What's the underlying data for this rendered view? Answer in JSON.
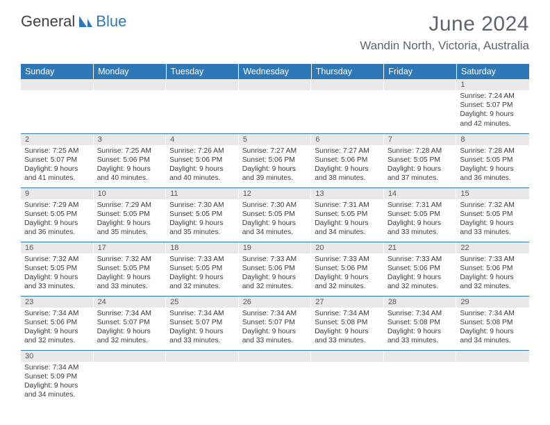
{
  "brand": {
    "part1": "General",
    "part2": "Blue"
  },
  "title": "June 2024",
  "location": "Wandin North, Victoria, Australia",
  "colors": {
    "header_bg": "#2e78b7",
    "header_text": "#ffffff",
    "daynum_bg": "#e9e9e9",
    "text": "#3a3a3a",
    "title_text": "#5b6670",
    "row_border": "#2e78b7"
  },
  "weekdays": [
    "Sunday",
    "Monday",
    "Tuesday",
    "Wednesday",
    "Thursday",
    "Friday",
    "Saturday"
  ],
  "first_weekday_index": 6,
  "days_in_month": 30,
  "days": {
    "1": {
      "sunrise": "7:24 AM",
      "sunset": "5:07 PM",
      "daylight": "9 hours and 42 minutes."
    },
    "2": {
      "sunrise": "7:25 AM",
      "sunset": "5:07 PM",
      "daylight": "9 hours and 41 minutes."
    },
    "3": {
      "sunrise": "7:25 AM",
      "sunset": "5:06 PM",
      "daylight": "9 hours and 40 minutes."
    },
    "4": {
      "sunrise": "7:26 AM",
      "sunset": "5:06 PM",
      "daylight": "9 hours and 40 minutes."
    },
    "5": {
      "sunrise": "7:27 AM",
      "sunset": "5:06 PM",
      "daylight": "9 hours and 39 minutes."
    },
    "6": {
      "sunrise": "7:27 AM",
      "sunset": "5:06 PM",
      "daylight": "9 hours and 38 minutes."
    },
    "7": {
      "sunrise": "7:28 AM",
      "sunset": "5:05 PM",
      "daylight": "9 hours and 37 minutes."
    },
    "8": {
      "sunrise": "7:28 AM",
      "sunset": "5:05 PM",
      "daylight": "9 hours and 36 minutes."
    },
    "9": {
      "sunrise": "7:29 AM",
      "sunset": "5:05 PM",
      "daylight": "9 hours and 36 minutes."
    },
    "10": {
      "sunrise": "7:29 AM",
      "sunset": "5:05 PM",
      "daylight": "9 hours and 35 minutes."
    },
    "11": {
      "sunrise": "7:30 AM",
      "sunset": "5:05 PM",
      "daylight": "9 hours and 35 minutes."
    },
    "12": {
      "sunrise": "7:30 AM",
      "sunset": "5:05 PM",
      "daylight": "9 hours and 34 minutes."
    },
    "13": {
      "sunrise": "7:31 AM",
      "sunset": "5:05 PM",
      "daylight": "9 hours and 34 minutes."
    },
    "14": {
      "sunrise": "7:31 AM",
      "sunset": "5:05 PM",
      "daylight": "9 hours and 33 minutes."
    },
    "15": {
      "sunrise": "7:32 AM",
      "sunset": "5:05 PM",
      "daylight": "9 hours and 33 minutes."
    },
    "16": {
      "sunrise": "7:32 AM",
      "sunset": "5:05 PM",
      "daylight": "9 hours and 33 minutes."
    },
    "17": {
      "sunrise": "7:32 AM",
      "sunset": "5:05 PM",
      "daylight": "9 hours and 33 minutes."
    },
    "18": {
      "sunrise": "7:33 AM",
      "sunset": "5:05 PM",
      "daylight": "9 hours and 32 minutes."
    },
    "19": {
      "sunrise": "7:33 AM",
      "sunset": "5:06 PM",
      "daylight": "9 hours and 32 minutes."
    },
    "20": {
      "sunrise": "7:33 AM",
      "sunset": "5:06 PM",
      "daylight": "9 hours and 32 minutes."
    },
    "21": {
      "sunrise": "7:33 AM",
      "sunset": "5:06 PM",
      "daylight": "9 hours and 32 minutes."
    },
    "22": {
      "sunrise": "7:33 AM",
      "sunset": "5:06 PM",
      "daylight": "9 hours and 32 minutes."
    },
    "23": {
      "sunrise": "7:34 AM",
      "sunset": "5:06 PM",
      "daylight": "9 hours and 32 minutes."
    },
    "24": {
      "sunrise": "7:34 AM",
      "sunset": "5:07 PM",
      "daylight": "9 hours and 32 minutes."
    },
    "25": {
      "sunrise": "7:34 AM",
      "sunset": "5:07 PM",
      "daylight": "9 hours and 33 minutes."
    },
    "26": {
      "sunrise": "7:34 AM",
      "sunset": "5:07 PM",
      "daylight": "9 hours and 33 minutes."
    },
    "27": {
      "sunrise": "7:34 AM",
      "sunset": "5:08 PM",
      "daylight": "9 hours and 33 minutes."
    },
    "28": {
      "sunrise": "7:34 AM",
      "sunset": "5:08 PM",
      "daylight": "9 hours and 33 minutes."
    },
    "29": {
      "sunrise": "7:34 AM",
      "sunset": "5:08 PM",
      "daylight": "9 hours and 34 minutes."
    },
    "30": {
      "sunrise": "7:34 AM",
      "sunset": "5:09 PM",
      "daylight": "9 hours and 34 minutes."
    }
  },
  "labels": {
    "sunrise": "Sunrise: ",
    "sunset": "Sunset: ",
    "daylight": "Daylight: "
  }
}
